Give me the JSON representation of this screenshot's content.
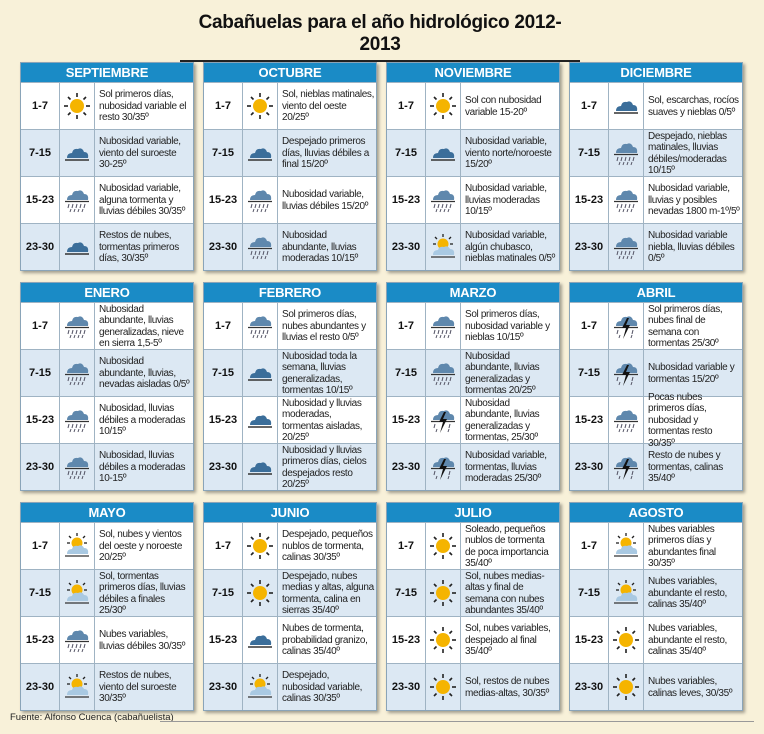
{
  "title": "Cabañuelas para el año hidrológico 2012-2013",
  "footer": "Fuente: Alfonso Cuenca (cabañuelista)",
  "colors": {
    "header": "#1a8bc6",
    "alt_row": "#dce8f3",
    "background": "#f8f1d9",
    "sun": "#f5b400",
    "cloud": "#3b6e9a"
  },
  "periods": [
    "1-7",
    "7-15",
    "15-23",
    "23-30"
  ],
  "months": [
    {
      "name": "SEPTIEMBRE",
      "rows": [
        {
          "icon": "sun",
          "text": "Sol primeros días, nubosidad variable el resto 30/35º"
        },
        {
          "icon": "cloud",
          "text": "Nubosidad variable, viento del suroeste 30-25º"
        },
        {
          "icon": "rain",
          "text": "Nubosidad variable, alguna tormenta y lluvias débiles 30/35º"
        },
        {
          "icon": "cloud",
          "text": "Restos de nubes, tormentas primeros días, 30/35º"
        }
      ]
    },
    {
      "name": "OCTUBRE",
      "rows": [
        {
          "icon": "sun",
          "text": "Sol, nieblas matinales, viento del oeste 20/25º"
        },
        {
          "icon": "cloud",
          "text": "Despejado primeros días, lluvias débiles a final 15/20º"
        },
        {
          "icon": "rain",
          "text": "Nubosidad variable, lluvias débiles 15/20º"
        },
        {
          "icon": "rain",
          "text": "Nubosidad abundante, lluvias moderadas 10/15º"
        }
      ]
    },
    {
      "name": "NOVIEMBRE",
      "rows": [
        {
          "icon": "sun",
          "text": "Sol con nubosidad variable 15-20º"
        },
        {
          "icon": "cloud",
          "text": "Nubosidad variable, viento norte/noroeste 15/20º"
        },
        {
          "icon": "rain",
          "text": "Nubosidad variable, lluvias moderadas 10/15º"
        },
        {
          "icon": "sun-cloud",
          "text": "Nubosidad variable, algún chubasco, nieblas matinales 0/5º"
        }
      ]
    },
    {
      "name": "DICIEMBRE",
      "rows": [
        {
          "icon": "cloud",
          "text": "Sol, escarchas, rocíos suaves y nieblas 0/5º"
        },
        {
          "icon": "rain",
          "text": "Despejado, nieblas matinales, lluvias débiles/moderadas 10/15º"
        },
        {
          "icon": "rain",
          "text": "Nubosidad variable, lluvias y posibles nevadas 1800 m-1º/5º"
        },
        {
          "icon": "rain",
          "text": "Nubosidad variable niebla, lluvias débiles 0/5º"
        }
      ]
    },
    {
      "name": "ENERO",
      "rows": [
        {
          "icon": "rain",
          "text": "Nubosidad abundante, lluvias generalizadas, nieve en sierra 1,5-5º"
        },
        {
          "icon": "rain",
          "text": "Nubosidad abundante, lluvias, nevadas aisladas 0/5º"
        },
        {
          "icon": "rain",
          "text": "Nubosidad, lluvias débiles a moderadas 10/15º"
        },
        {
          "icon": "rain",
          "text": "Nubosidad, lluvias débiles a moderadas 10-15º"
        }
      ]
    },
    {
      "name": "FEBRERO",
      "rows": [
        {
          "icon": "rain",
          "text": "Sol primeros días, nubes abundantes y lluvias el resto 0/5º"
        },
        {
          "icon": "cloud",
          "text": "Nubosidad toda la semana, lluvias generalizadas, tormentas 10/15º"
        },
        {
          "icon": "cloud",
          "text": "Nubosidad y lluvias moderadas, tormentas aisladas, 20/25º"
        },
        {
          "icon": "cloud",
          "text": "Nubosidad y lluvias primeros días, cielos despejados resto 20/25º"
        }
      ]
    },
    {
      "name": "MARZO",
      "rows": [
        {
          "icon": "rain",
          "text": "Sol primeros días, nubosidad variable y nieblas 10/15º"
        },
        {
          "icon": "rain",
          "text": "Nubosidad abundante, lluvias generalizadas y tormentas 20/25º"
        },
        {
          "icon": "storm",
          "text": "Nubosidad abundante, lluvias generalizadas y tormentas, 25/30º"
        },
        {
          "icon": "storm",
          "text": "Nubosidad variable, tormentas, lluvias moderadas 25/30º"
        }
      ]
    },
    {
      "name": "ABRIL",
      "rows": [
        {
          "icon": "storm",
          "text": "Sol primeros días, nubes final de semana con tormentas 25/30º"
        },
        {
          "icon": "storm",
          "text": "Nubosidad variable y tormentas 15/20º"
        },
        {
          "icon": "rain",
          "text": "Pocas nubes primeros días, nubosidad y tormentas resto 30/35º"
        },
        {
          "icon": "storm",
          "text": "Resto de nubes y tormentas, calinas 35/40º"
        }
      ]
    },
    {
      "name": "MAYO",
      "rows": [
        {
          "icon": "sun-cloud",
          "text": "Sol, nubes y vientos del oeste y noroeste 20/25º"
        },
        {
          "icon": "sun-cloud",
          "text": "Sol, tormentas primeros días, lluvias débiles a finales 25/30º"
        },
        {
          "icon": "rain",
          "text": "Nubes variables, lluvias débiles 30/35º"
        },
        {
          "icon": "sun-cloud",
          "text": "Restos de nubes, viento del suroeste 30/35º"
        }
      ]
    },
    {
      "name": "JUNIO",
      "rows": [
        {
          "icon": "sun",
          "text": "Despejado, pequeños nublos de tormenta, calinas 30/35º"
        },
        {
          "icon": "sun",
          "text": "Despejado, nubes medias y altas, alguna tormenta, calina en sierras 35/40º"
        },
        {
          "icon": "cloud",
          "text": "Nubes de tormenta, probabilidad granizo, calinas 35/40º"
        },
        {
          "icon": "sun-cloud",
          "text": "Despejado, nubosidad variable, calinas 30/35º"
        }
      ]
    },
    {
      "name": "JULIO",
      "rows": [
        {
          "icon": "sun",
          "text": "Soleado, pequeños nublos de tormenta de poca importancia 35/40º"
        },
        {
          "icon": "sun",
          "text": "Sol, nubes medias-altas y final de semana con nubes abundantes 35/40º"
        },
        {
          "icon": "sun",
          "text": "Sol, nubes variables, despejado al final 35/40º"
        },
        {
          "icon": "sun",
          "text": "Sol, restos de nubes medias-altas, 30/35º"
        }
      ]
    },
    {
      "name": "AGOSTO",
      "rows": [
        {
          "icon": "sun-cloud",
          "text": "Nubes variables primeros días y abundantes final 30/35º"
        },
        {
          "icon": "sun-cloud",
          "text": "Nubes variables, abundante el resto, calinas 35/40º"
        },
        {
          "icon": "sun",
          "text": "Nubes variables, abundante el resto, calinas 35/40º"
        },
        {
          "icon": "sun",
          "text": "Nubes variables, calinas leves, 30/35º"
        }
      ]
    }
  ]
}
